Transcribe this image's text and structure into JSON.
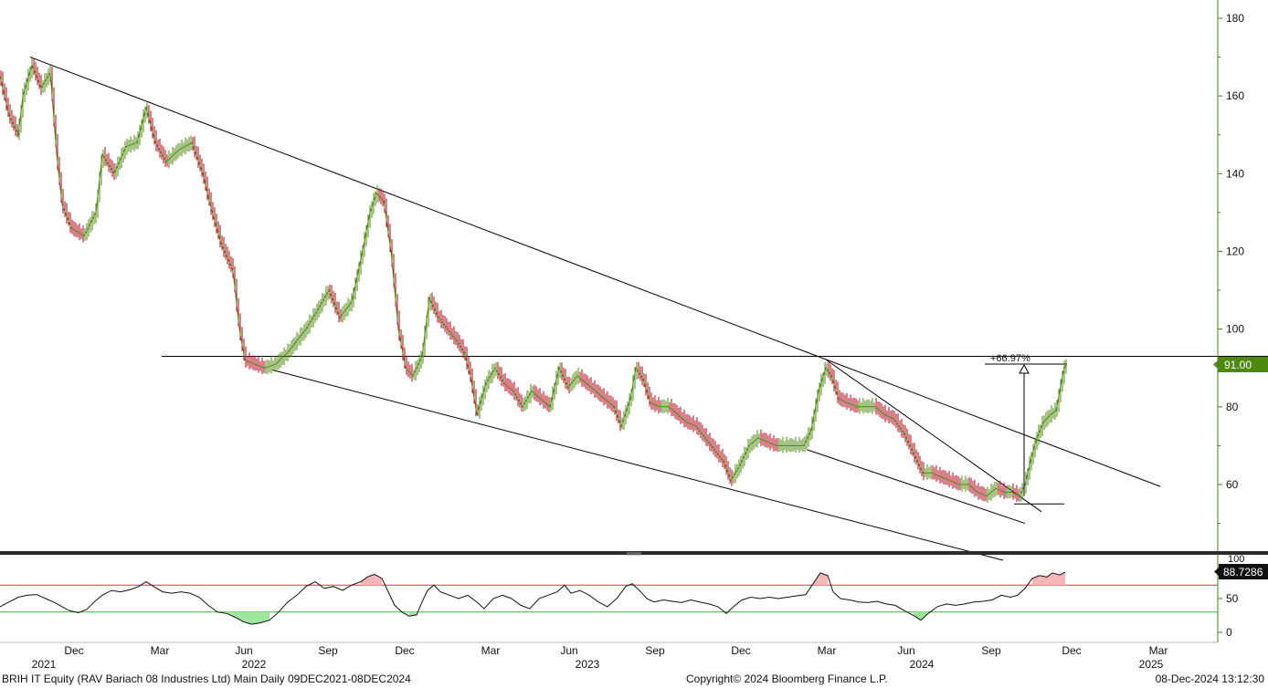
{
  "footer": {
    "left": "BRIH IT Equity (RAV Bariach 08 Industries Ltd) Main  Daily 09DEC2021-08DEC2024",
    "center": "Copyright© 2024 Bloomberg Finance L.P.",
    "right": "08-Dec-2024 13:12:30"
  },
  "colors": {
    "up": "#4f8a10",
    "down": "#b3001b",
    "axis": "#4f7a1f",
    "last_price_tag": "#4f8a10",
    "rsi_tag": "#111111",
    "rsi_upper": "#d43a3a",
    "rsi_lower": "#2fbf2f",
    "overbought_fill": "#f4b6b6",
    "oversold_fill": "#9ee69e"
  },
  "chart_data": [
    {
      "type": "line",
      "panel": "price",
      "y_ticks": [
        60,
        80,
        100,
        120,
        140,
        160,
        180
      ],
      "ylim": [
        40,
        183
      ],
      "x_months": [
        "Dec",
        "Mar",
        "Jun",
        "Sep",
        "Dec",
        "Mar",
        "Jun",
        "Sep",
        "Dec",
        "Mar",
        "Jun",
        "Sep",
        "Dec",
        "Mar"
      ],
      "x_years": [
        "2021",
        "2022",
        "2023",
        "2024",
        "2025"
      ],
      "last_price": "91.00",
      "annotation": "+66.97%",
      "series": [
        {
          "values": [
            [
              0,
              165
            ],
            [
              10,
              155
            ],
            [
              20,
              150
            ],
            [
              25,
              160
            ],
            [
              35,
              168
            ],
            [
              45,
              162
            ],
            [
              55,
              166
            ],
            [
              62,
              145
            ],
            [
              68,
              132
            ],
            [
              78,
              126
            ],
            [
              92,
              124
            ],
            [
              105,
              130
            ],
            [
              112,
              145
            ],
            [
              125,
              140
            ],
            [
              138,
              147
            ],
            [
              150,
              148
            ],
            [
              160,
              157
            ],
            [
              170,
              148
            ],
            [
              182,
              143
            ],
            [
              195,
              146
            ],
            [
              210,
              148
            ],
            [
              222,
              140
            ],
            [
              230,
              132
            ],
            [
              242,
              122
            ],
            [
              255,
              115
            ],
            [
              262,
              100
            ],
            [
              268,
              92
            ],
            [
              278,
              91
            ],
            [
              290,
              90
            ],
            [
              302,
              91
            ],
            [
              315,
              94
            ],
            [
              325,
              97
            ],
            [
              335,
              100
            ],
            [
              348,
              105
            ],
            [
              360,
              110
            ],
            [
              372,
              103
            ],
            [
              385,
              107
            ],
            [
              395,
              118
            ],
            [
              405,
              130
            ],
            [
              412,
              135
            ],
            [
              420,
              133
            ],
            [
              428,
              120
            ],
            [
              436,
              100
            ],
            [
              444,
              90
            ],
            [
              452,
              88
            ],
            [
              462,
              93
            ],
            [
              470,
              108
            ],
            [
              480,
              103
            ],
            [
              490,
              100
            ],
            [
              500,
              97
            ],
            [
              508,
              94
            ],
            [
              515,
              88
            ],
            [
              522,
              78
            ],
            [
              532,
              86
            ],
            [
              542,
              90
            ],
            [
              552,
              86
            ],
            [
              562,
              84
            ],
            [
              572,
              80
            ],
            [
              582,
              84
            ],
            [
              592,
              82
            ],
            [
              602,
              80
            ],
            [
              612,
              90
            ],
            [
              622,
              85
            ],
            [
              632,
              88
            ],
            [
              642,
              86
            ],
            [
              652,
              84
            ],
            [
              662,
              82
            ],
            [
              672,
              80
            ],
            [
              680,
              75
            ],
            [
              690,
              82
            ],
            [
              696,
              90
            ],
            [
              704,
              87
            ],
            [
              712,
              81
            ],
            [
              722,
              80
            ],
            [
              732,
              80
            ],
            [
              742,
              78
            ],
            [
              752,
              76
            ],
            [
              762,
              75
            ],
            [
              772,
              72
            ],
            [
              782,
              69
            ],
            [
              792,
              66
            ],
            [
              800,
              61
            ],
            [
              810,
              65
            ],
            [
              820,
              70
            ],
            [
              830,
              72
            ],
            [
              840,
              71
            ],
            [
              850,
              70
            ],
            [
              860,
              70
            ],
            [
              870,
              70
            ],
            [
              880,
              70
            ],
            [
              888,
              74
            ],
            [
              896,
              84
            ],
            [
              904,
              90
            ],
            [
              910,
              88
            ],
            [
              918,
              82
            ],
            [
              928,
              81
            ],
            [
              938,
              80
            ],
            [
              948,
              80
            ],
            [
              958,
              80
            ],
            [
              968,
              78
            ],
            [
              978,
              77
            ],
            [
              990,
              73
            ],
            [
              1000,
              68
            ],
            [
              1010,
              63
            ],
            [
              1020,
              63
            ],
            [
              1030,
              62
            ],
            [
              1040,
              61
            ],
            [
              1050,
              60
            ],
            [
              1060,
              60
            ],
            [
              1070,
              58
            ],
            [
              1080,
              57
            ],
            [
              1090,
              59
            ],
            [
              1100,
              58
            ],
            [
              1108,
              58
            ],
            [
              1116,
              57
            ],
            [
              1122,
              60
            ],
            [
              1128,
              66
            ],
            [
              1135,
              72
            ],
            [
              1142,
              76
            ],
            [
              1150,
              78
            ],
            [
              1156,
              79
            ],
            [
              1160,
              84
            ],
            [
              1164,
              89
            ],
            [
              1167,
              91
            ]
          ]
        }
      ],
      "lines": [
        {
          "from": [
            33,
            170
          ],
          "to": [
            1270,
            59.5
          ]
        },
        {
          "from": [
            177,
            93
          ],
          "to": [
            1388,
            93
          ]
        },
        {
          "from": [
            298,
            89.5
          ],
          "to": [
            1098,
            40.5
          ]
        },
        {
          "from": [
            905,
            92
          ],
          "to": [
            1140,
            53
          ]
        },
        {
          "from": [
            883,
            69
          ],
          "to": [
            1122,
            50
          ]
        },
        {
          "from": [
            1110,
            55
          ],
          "to": [
            1165,
            55
          ]
        },
        {
          "from": [
            1078,
            91
          ],
          "to": [
            1168,
            91
          ]
        }
      ]
    },
    {
      "type": "line",
      "panel": "rsi",
      "y_ticks": [
        0,
        50
      ],
      "top_tick_label": "100",
      "ylim": [
        0,
        100
      ],
      "upper_band": 70,
      "lower_band": 30,
      "last_value": "88.7286",
      "series": [
        {
          "values": [
            [
              0,
              38
            ],
            [
              10,
              45
            ],
            [
              20,
              52
            ],
            [
              30,
              55
            ],
            [
              40,
              56
            ],
            [
              50,
              50
            ],
            [
              60,
              44
            ],
            [
              68,
              38
            ],
            [
              76,
              32
            ],
            [
              86,
              29
            ],
            [
              95,
              34
            ],
            [
              103,
              45
            ],
            [
              112,
              55
            ],
            [
              122,
              62
            ],
            [
              132,
              60
            ],
            [
              142,
              63
            ],
            [
              152,
              68
            ],
            [
              160,
              75
            ],
            [
              168,
              68
            ],
            [
              178,
              60
            ],
            [
              188,
              58
            ],
            [
              198,
              60
            ],
            [
              208,
              58
            ],
            [
              218,
              52
            ],
            [
              228,
              40
            ],
            [
              238,
              30
            ],
            [
              248,
              28
            ],
            [
              258,
              22
            ],
            [
              266,
              16
            ],
            [
              275,
              12
            ],
            [
              285,
              14
            ],
            [
              295,
              18
            ],
            [
              305,
              30
            ],
            [
              315,
              45
            ],
            [
              325,
              55
            ],
            [
              335,
              68
            ],
            [
              345,
              75
            ],
            [
              355,
              65
            ],
            [
              365,
              68
            ],
            [
              375,
              62
            ],
            [
              385,
              70
            ],
            [
              395,
              75
            ],
            [
              402,
              82
            ],
            [
              410,
              86
            ],
            [
              418,
              80
            ],
            [
              425,
              60
            ],
            [
              432,
              40
            ],
            [
              440,
              30
            ],
            [
              448,
              24
            ],
            [
              456,
              26
            ],
            [
              462,
              45
            ],
            [
              468,
              62
            ],
            [
              475,
              70
            ],
            [
              482,
              60
            ],
            [
              492,
              55
            ],
            [
              502,
              50
            ],
            [
              512,
              55
            ],
            [
              522,
              45
            ],
            [
              530,
              35
            ],
            [
              540,
              50
            ],
            [
              550,
              55
            ],
            [
              560,
              50
            ],
            [
              570,
              40
            ],
            [
              580,
              35
            ],
            [
              590,
              50
            ],
            [
              600,
              55
            ],
            [
              610,
              60
            ],
            [
              618,
              70
            ],
            [
              625,
              58
            ],
            [
              635,
              62
            ],
            [
              645,
              55
            ],
            [
              655,
              45
            ],
            [
              665,
              38
            ],
            [
              675,
              50
            ],
            [
              685,
              68
            ],
            [
              692,
              72
            ],
            [
              700,
              62
            ],
            [
              708,
              50
            ],
            [
              716,
              45
            ],
            [
              726,
              48
            ],
            [
              736,
              46
            ],
            [
              746,
              44
            ],
            [
              756,
              48
            ],
            [
              766,
              45
            ],
            [
              776,
              42
            ],
            [
              786,
              38
            ],
            [
              795,
              28
            ],
            [
              803,
              38
            ],
            [
              812,
              48
            ],
            [
              822,
              52
            ],
            [
              832,
              50
            ],
            [
              842,
              52
            ],
            [
              852,
              50
            ],
            [
              862,
              52
            ],
            [
              872,
              54
            ],
            [
              882,
              56
            ],
            [
              890,
              72
            ],
            [
              898,
              88
            ],
            [
              906,
              84
            ],
            [
              912,
              60
            ],
            [
              920,
              50
            ],
            [
              930,
              48
            ],
            [
              940,
              45
            ],
            [
              950,
              44
            ],
            [
              960,
              46
            ],
            [
              970,
              42
            ],
            [
              980,
              40
            ],
            [
              990,
              32
            ],
            [
              1000,
              25
            ],
            [
              1008,
              18
            ],
            [
              1016,
              28
            ],
            [
              1026,
              38
            ],
            [
              1036,
              42
            ],
            [
              1046,
              40
            ],
            [
              1056,
              42
            ],
            [
              1066,
              45
            ],
            [
              1076,
              46
            ],
            [
              1086,
              48
            ],
            [
              1096,
              55
            ],
            [
              1106,
              52
            ],
            [
              1114,
              55
            ],
            [
              1122,
              65
            ],
            [
              1130,
              80
            ],
            [
              1138,
              84
            ],
            [
              1146,
              82
            ],
            [
              1152,
              88
            ],
            [
              1160,
              85
            ],
            [
              1166,
              89
            ]
          ]
        }
      ]
    }
  ]
}
